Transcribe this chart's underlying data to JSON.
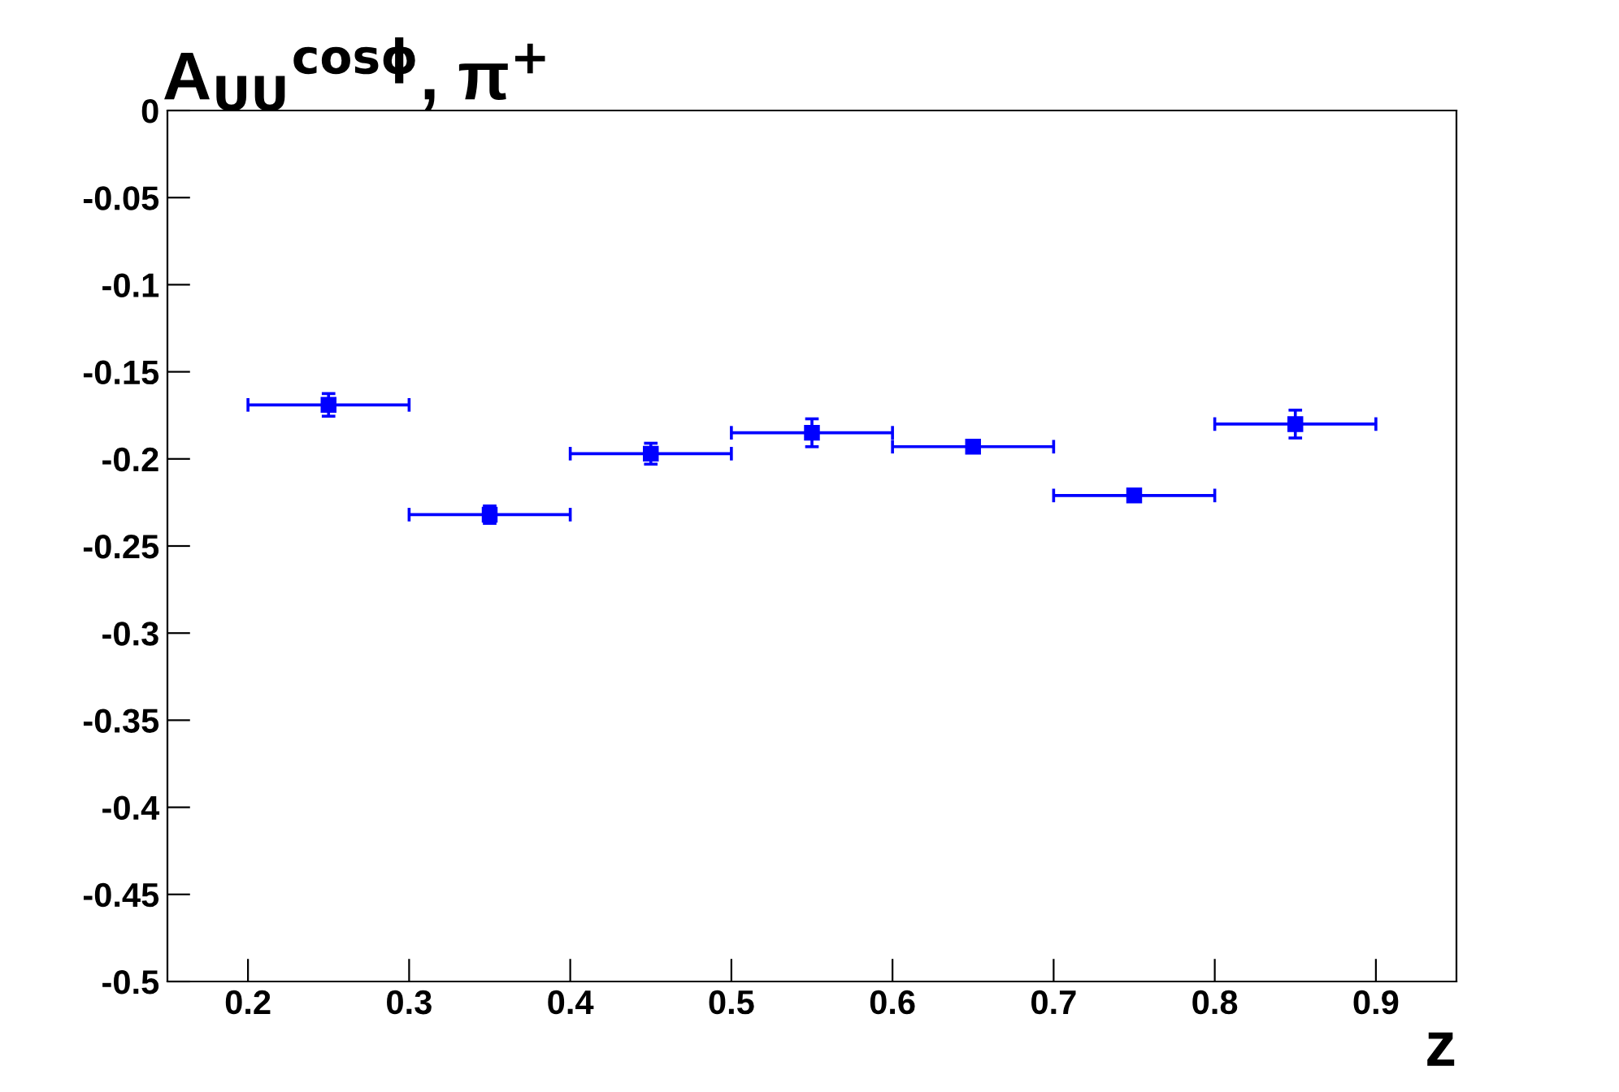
{
  "chart_data": {
    "type": "scatter",
    "title": "A$_{UU}$$^{cosϕ}$, π$^{+}$",
    "xlabel": "z",
    "x": [
      0.25,
      0.35,
      0.45,
      0.55,
      0.65,
      0.75,
      0.85
    ],
    "values": [
      -0.169,
      -0.232,
      -0.197,
      -0.185,
      -0.193,
      -0.221,
      -0.18
    ],
    "errors": [
      0.0065,
      0.005,
      0.006,
      0.008,
      0.002,
      0.002,
      0.008
    ],
    "xerrors": [
      0.05,
      0.05,
      0.05,
      0.05,
      0.05,
      0.05,
      0.05
    ],
    "color": "#0000ff",
    "marker": "square",
    "grid": false,
    "legend": false,
    "xlim": [
      0.15,
      0.95
    ],
    "xticks": [
      0.2,
      0.3,
      0.4,
      0.5,
      0.6,
      0.7,
      0.8,
      0.9
    ],
    "ylim": [
      -0.5,
      0
    ],
    "yticks": [
      -0.5,
      -0.45,
      -0.4,
      -0.35,
      -0.3,
      -0.25,
      -0.2,
      -0.15,
      -0.1,
      -0.05,
      0
    ]
  }
}
